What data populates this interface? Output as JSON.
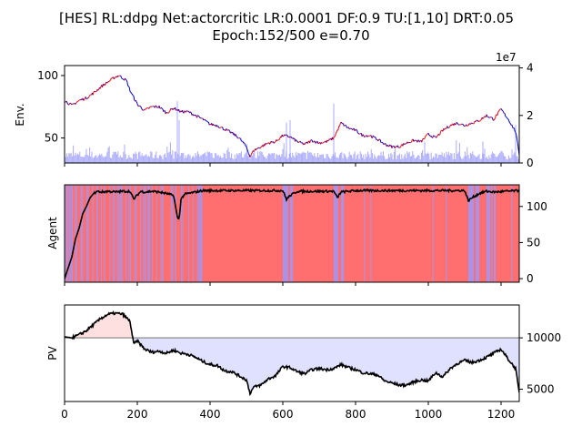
{
  "title_line1": "[HES] RL:ddpg Net:actorcritic LR:0.0001 DF:0.9 TU:[1,10] DRT:0.05",
  "title_line2": "Epoch:152/500 e=0.70",
  "colors": {
    "price_up": "#ff0000",
    "price_down": "#0000cc",
    "volume": "#aaaaff",
    "hold": "#ff6f6f",
    "action": "#9a9aff",
    "agent_line": "#000000",
    "pv_gain": "#ffe0e0",
    "pv_loss": "#e0e0ff",
    "baseline": "#808080"
  },
  "chart_data": [
    {
      "name": "Env.",
      "type": "line",
      "ylabel": "Env.",
      "xlim": [
        0,
        1250
      ],
      "ylim": [
        30,
        108
      ],
      "y_ticks": [
        50,
        100
      ],
      "y2_ticks": [
        0,
        2,
        4
      ],
      "y2_ticks_labels": [
        "0",
        "2",
        "4"
      ],
      "y2_multiplier": "1e7",
      "y2lim": [
        0,
        4.1
      ],
      "price_x": [
        0,
        20,
        40,
        60,
        80,
        100,
        120,
        140,
        150,
        160,
        170,
        180,
        200,
        220,
        240,
        260,
        280,
        300,
        320,
        340,
        360,
        380,
        400,
        420,
        440,
        460,
        480,
        500,
        510,
        520,
        540,
        560,
        580,
        600,
        620,
        640,
        660,
        680,
        700,
        720,
        740,
        760,
        780,
        800,
        820,
        840,
        860,
        880,
        900,
        920,
        940,
        960,
        980,
        1000,
        1020,
        1040,
        1060,
        1080,
        1100,
        1120,
        1140,
        1160,
        1180,
        1200,
        1220,
        1240,
        1250
      ],
      "price_y": [
        80,
        76,
        80,
        82,
        86,
        91,
        95,
        99,
        100,
        98,
        96,
        88,
        77,
        72,
        75,
        75,
        70,
        74,
        71,
        71,
        68,
        65,
        61,
        60,
        57,
        54,
        50,
        43,
        35,
        40,
        43,
        46,
        47,
        52,
        51,
        47,
        45,
        48,
        46,
        47,
        50,
        62,
        58,
        56,
        52,
        52,
        49,
        45,
        43,
        43,
        46,
        48,
        47,
        53,
        50,
        56,
        60,
        62,
        60,
        62,
        64,
        68,
        65,
        73,
        65,
        55,
        37
      ],
      "volume_peaks_x": [
        310,
        315,
        610,
        620,
        740,
        1150,
        1240
      ],
      "volume_peaks_y2": [
        2.6,
        1.8,
        1.7,
        1.8,
        2.5,
        0.9,
        1.6
      ]
    },
    {
      "name": "Agent",
      "type": "line",
      "ylabel": "Agent",
      "xlim": [
        0,
        1250
      ],
      "ylim": [
        -5,
        130
      ],
      "y2_ticks": [
        0,
        50,
        100
      ],
      "x": [
        0,
        10,
        20,
        30,
        40,
        50,
        60,
        70,
        80,
        90,
        100,
        120,
        140,
        160,
        180,
        190,
        200,
        210,
        220,
        240,
        260,
        280,
        300,
        310,
        315,
        320,
        330,
        340,
        360,
        380,
        400,
        500,
        600,
        610,
        620,
        640,
        700,
        740,
        750,
        760,
        800,
        1000,
        1100,
        1110,
        1120,
        1140,
        1160,
        1180,
        1250
      ],
      "y": [
        0,
        15,
        30,
        55,
        70,
        90,
        100,
        112,
        118,
        121,
        120,
        121,
        120,
        121,
        121,
        110,
        116,
        121,
        120,
        121,
        120,
        118,
        115,
        85,
        82,
        110,
        117,
        118,
        120,
        122,
        122,
        122,
        122,
        110,
        115,
        121,
        121,
        121,
        112,
        120,
        122,
        122,
        122,
        108,
        112,
        118,
        121,
        120,
        122
      ]
    },
    {
      "name": "PV",
      "type": "area",
      "ylabel": "PV",
      "xlim": [
        0,
        1250
      ],
      "ylim": [
        3800,
        13200
      ],
      "baseline": 10000,
      "y2_ticks": [
        5000,
        10000
      ],
      "x_ticks": [
        0,
        200,
        400,
        600,
        800,
        1000,
        1200
      ],
      "x": [
        0,
        20,
        40,
        60,
        80,
        100,
        120,
        140,
        160,
        180,
        190,
        200,
        220,
        240,
        260,
        280,
        300,
        320,
        340,
        360,
        380,
        400,
        420,
        440,
        460,
        480,
        500,
        510,
        520,
        540,
        560,
        580,
        600,
        620,
        640,
        660,
        680,
        700,
        720,
        740,
        760,
        780,
        800,
        820,
        840,
        860,
        880,
        900,
        920,
        940,
        960,
        980,
        1000,
        1020,
        1040,
        1060,
        1080,
        1100,
        1120,
        1140,
        1160,
        1180,
        1200,
        1220,
        1240,
        1250
      ],
      "y": [
        10100,
        10000,
        10300,
        10700,
        11300,
        11900,
        12300,
        12400,
        12300,
        11600,
        9400,
        9700,
        8900,
        8600,
        8700,
        8500,
        8800,
        8500,
        8400,
        8100,
        7700,
        7400,
        7300,
        6800,
        6700,
        6300,
        5900,
        4600,
        5200,
        5400,
        6000,
        6300,
        7200,
        7100,
        6700,
        6500,
        6900,
        7000,
        6900,
        7000,
        7400,
        7100,
        6900,
        6600,
        6500,
        6400,
        5800,
        5600,
        5400,
        5400,
        5700,
        5900,
        5800,
        6600,
        6200,
        7000,
        7500,
        7800,
        7600,
        7800,
        8100,
        8500,
        8900,
        7900,
        7000,
        4600
      ]
    }
  ]
}
